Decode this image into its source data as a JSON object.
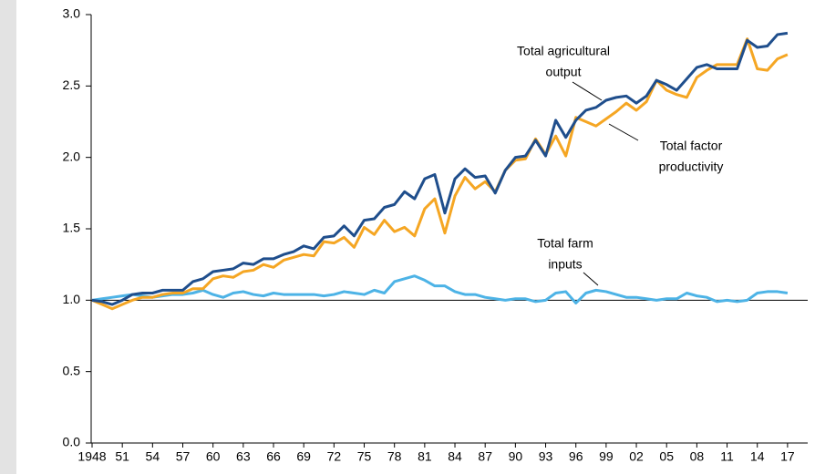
{
  "chart_data": {
    "type": "line",
    "x": [
      1948,
      1949,
      1950,
      1951,
      1952,
      1953,
      1954,
      1955,
      1956,
      1957,
      1958,
      1959,
      1960,
      1961,
      1962,
      1963,
      1964,
      1965,
      1966,
      1967,
      1968,
      1969,
      1970,
      1971,
      1972,
      1973,
      1974,
      1975,
      1976,
      1977,
      1978,
      1979,
      1980,
      1981,
      1982,
      1983,
      1984,
      1985,
      1986,
      1987,
      1988,
      1989,
      1990,
      1991,
      1992,
      1993,
      1994,
      1995,
      1996,
      1997,
      1998,
      1999,
      2000,
      2001,
      2002,
      2003,
      2004,
      2005,
      2006,
      2007,
      2008,
      2009,
      2010,
      2011,
      2012,
      2013,
      2014,
      2015,
      2016,
      2017
    ],
    "series": [
      {
        "name": "Total agricultural output",
        "color": "#1f4e8c",
        "values": [
          1.0,
          0.99,
          0.97,
          1.0,
          1.04,
          1.05,
          1.05,
          1.07,
          1.07,
          1.07,
          1.13,
          1.15,
          1.2,
          1.21,
          1.22,
          1.26,
          1.25,
          1.29,
          1.29,
          1.32,
          1.34,
          1.38,
          1.36,
          1.44,
          1.45,
          1.52,
          1.45,
          1.56,
          1.57,
          1.65,
          1.67,
          1.76,
          1.71,
          1.85,
          1.88,
          1.61,
          1.85,
          1.92,
          1.86,
          1.87,
          1.75,
          1.91,
          2.0,
          2.01,
          2.12,
          2.01,
          2.26,
          2.14,
          2.26,
          2.33,
          2.35,
          2.4,
          2.42,
          2.43,
          2.38,
          2.43,
          2.54,
          2.51,
          2.47,
          2.55,
          2.63,
          2.65,
          2.62,
          2.62,
          2.62,
          2.82,
          2.77,
          2.78,
          2.86,
          2.87
        ]
      },
      {
        "name": "Total factor productivity",
        "color": "#f5a623",
        "values": [
          1.0,
          0.97,
          0.94,
          0.97,
          1.0,
          1.02,
          1.02,
          1.04,
          1.05,
          1.05,
          1.08,
          1.08,
          1.15,
          1.17,
          1.16,
          1.2,
          1.21,
          1.25,
          1.23,
          1.28,
          1.3,
          1.32,
          1.31,
          1.41,
          1.4,
          1.44,
          1.37,
          1.51,
          1.46,
          1.56,
          1.48,
          1.51,
          1.45,
          1.64,
          1.71,
          1.47,
          1.73,
          1.86,
          1.78,
          1.83,
          1.76,
          1.91,
          1.98,
          1.99,
          2.13,
          2.02,
          2.15,
          2.01,
          2.28,
          2.25,
          2.22,
          2.27,
          2.32,
          2.38,
          2.33,
          2.39,
          2.54,
          2.47,
          2.44,
          2.42,
          2.56,
          2.61,
          2.65,
          2.65,
          2.65,
          2.83,
          2.62,
          2.61,
          2.69,
          2.72
        ]
      },
      {
        "name": "Total farm inputs",
        "color": "#4db3e6",
        "values": [
          1.0,
          1.01,
          1.02,
          1.03,
          1.04,
          1.03,
          1.02,
          1.03,
          1.04,
          1.04,
          1.05,
          1.07,
          1.04,
          1.02,
          1.05,
          1.06,
          1.04,
          1.03,
          1.05,
          1.04,
          1.04,
          1.04,
          1.04,
          1.03,
          1.04,
          1.06,
          1.05,
          1.04,
          1.07,
          1.05,
          1.13,
          1.15,
          1.17,
          1.14,
          1.1,
          1.1,
          1.06,
          1.04,
          1.04,
          1.02,
          1.01,
          1.0,
          1.01,
          1.01,
          0.99,
          1.0,
          1.05,
          1.06,
          0.98,
          1.05,
          1.07,
          1.06,
          1.04,
          1.02,
          1.02,
          1.01,
          1.0,
          1.01,
          1.01,
          1.05,
          1.03,
          1.02,
          0.99,
          1.0,
          0.99,
          1.0,
          1.05,
          1.06,
          1.06,
          1.05
        ]
      }
    ],
    "annotations": [
      {
        "text": [
          "Total agricultural",
          "output"
        ],
        "series": 0
      },
      {
        "text": [
          "Total factor",
          "productivity"
        ],
        "series": 1
      },
      {
        "text": [
          "Total farm",
          "inputs"
        ],
        "series": 2
      }
    ],
    "reference_line": 1.0,
    "xlim": [
      1947.9,
      2019
    ],
    "xticks": [
      {
        "value": 1948,
        "label": "1948"
      },
      {
        "value": 1951,
        "label": "51"
      },
      {
        "value": 1954,
        "label": "54"
      },
      {
        "value": 1957,
        "label": "57"
      },
      {
        "value": 1960,
        "label": "60"
      },
      {
        "value": 1963,
        "label": "63"
      },
      {
        "value": 1966,
        "label": "66"
      },
      {
        "value": 1969,
        "label": "69"
      },
      {
        "value": 1972,
        "label": "72"
      },
      {
        "value": 1975,
        "label": "75"
      },
      {
        "value": 1978,
        "label": "78"
      },
      {
        "value": 1981,
        "label": "81"
      },
      {
        "value": 1984,
        "label": "84"
      },
      {
        "value": 1987,
        "label": "87"
      },
      {
        "value": 1990,
        "label": "90"
      },
      {
        "value": 1993,
        "label": "93"
      },
      {
        "value": 1996,
        "label": "96"
      },
      {
        "value": 1999,
        "label": "99"
      },
      {
        "value": 2002,
        "label": "02"
      },
      {
        "value": 2005,
        "label": "05"
      },
      {
        "value": 2008,
        "label": "08"
      },
      {
        "value": 2011,
        "label": "11"
      },
      {
        "value": 2014,
        "label": "14"
      },
      {
        "value": 2017,
        "label": "17"
      }
    ],
    "ylim": [
      0,
      3
    ],
    "yticks": [
      {
        "value": 0,
        "label": "0.0"
      },
      {
        "value": 0.5,
        "label": "0.5"
      },
      {
        "value": 1,
        "label": "1.0"
      },
      {
        "value": 1.5,
        "label": "1.5"
      },
      {
        "value": 2,
        "label": "2.0"
      },
      {
        "value": 2.5,
        "label": "2.5"
      },
      {
        "value": 3,
        "label": "3.0"
      }
    ]
  }
}
